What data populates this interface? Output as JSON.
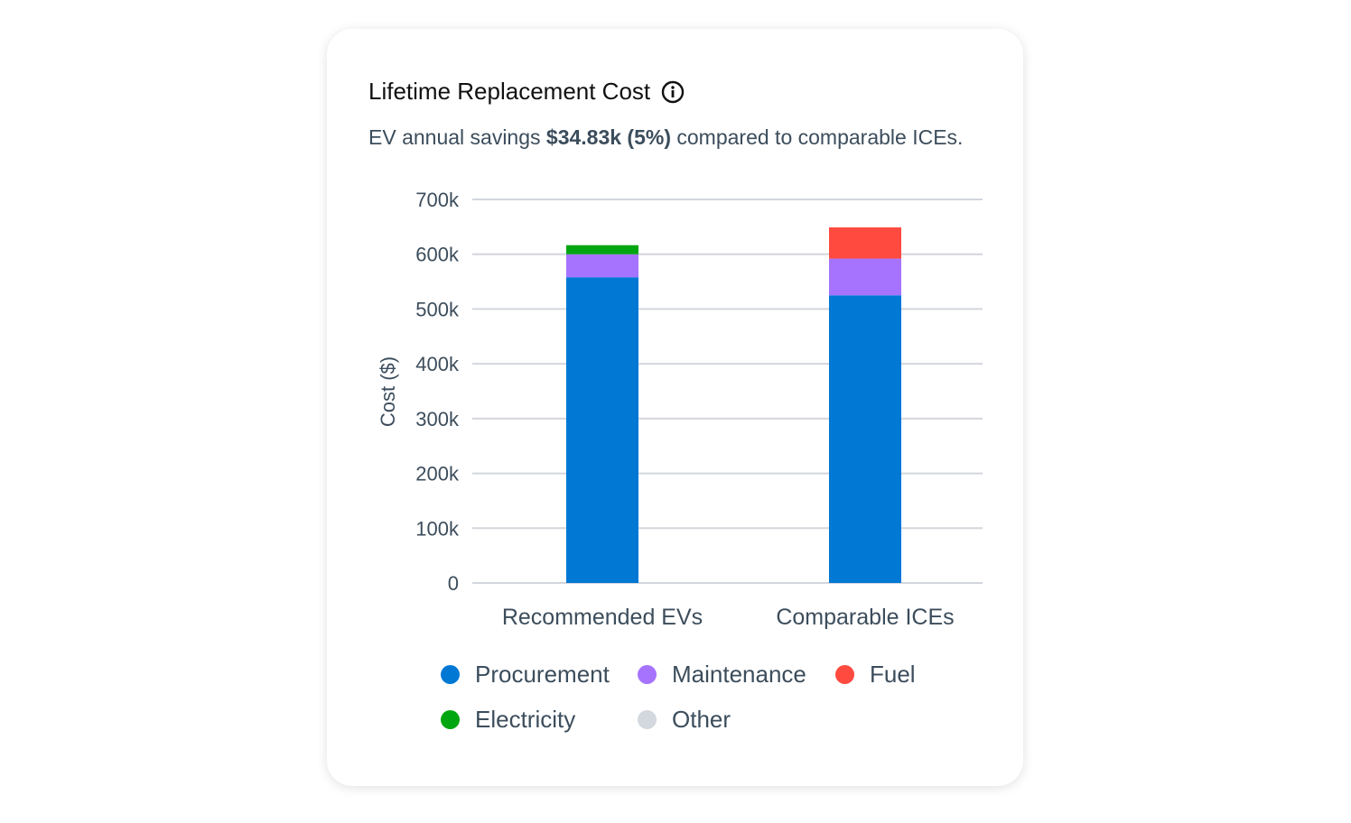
{
  "card": {
    "title": "Lifetime Replacement Cost",
    "info_icon": "info-circle-icon",
    "subtitle_pre": "EV annual savings ",
    "subtitle_bold": "$34.83k (5%)",
    "subtitle_post": " compared to comparable ICEs."
  },
  "chart_data": {
    "type": "bar",
    "stacked": true,
    "title": "Lifetime Replacement Cost",
    "ylabel": "Cost ($)",
    "xlabel": "",
    "ylim": [
      0,
      700000
    ],
    "yticks": [
      0,
      100000,
      200000,
      300000,
      400000,
      500000,
      600000,
      700000
    ],
    "ytick_labels": [
      "0",
      "100k",
      "200k",
      "300k",
      "400k",
      "500k",
      "600k",
      "700k"
    ],
    "grid": true,
    "legend_placement": "bottom",
    "categories": [
      "Recommended EVs",
      "Comparable ICEs"
    ],
    "series": [
      {
        "name": "Procurement",
        "color": "#0078d4",
        "values": [
          558000,
          525000
        ]
      },
      {
        "name": "Maintenance",
        "color": "#a673ff",
        "values": [
          42000,
          67000
        ]
      },
      {
        "name": "Fuel",
        "color": "#ff4a3f",
        "values": [
          0,
          57000
        ]
      },
      {
        "name": "Electricity",
        "color": "#00a60f",
        "values": [
          16500,
          0
        ]
      },
      {
        "name": "Other",
        "color": "#d3d7de",
        "values": [
          0,
          0
        ]
      }
    ]
  }
}
